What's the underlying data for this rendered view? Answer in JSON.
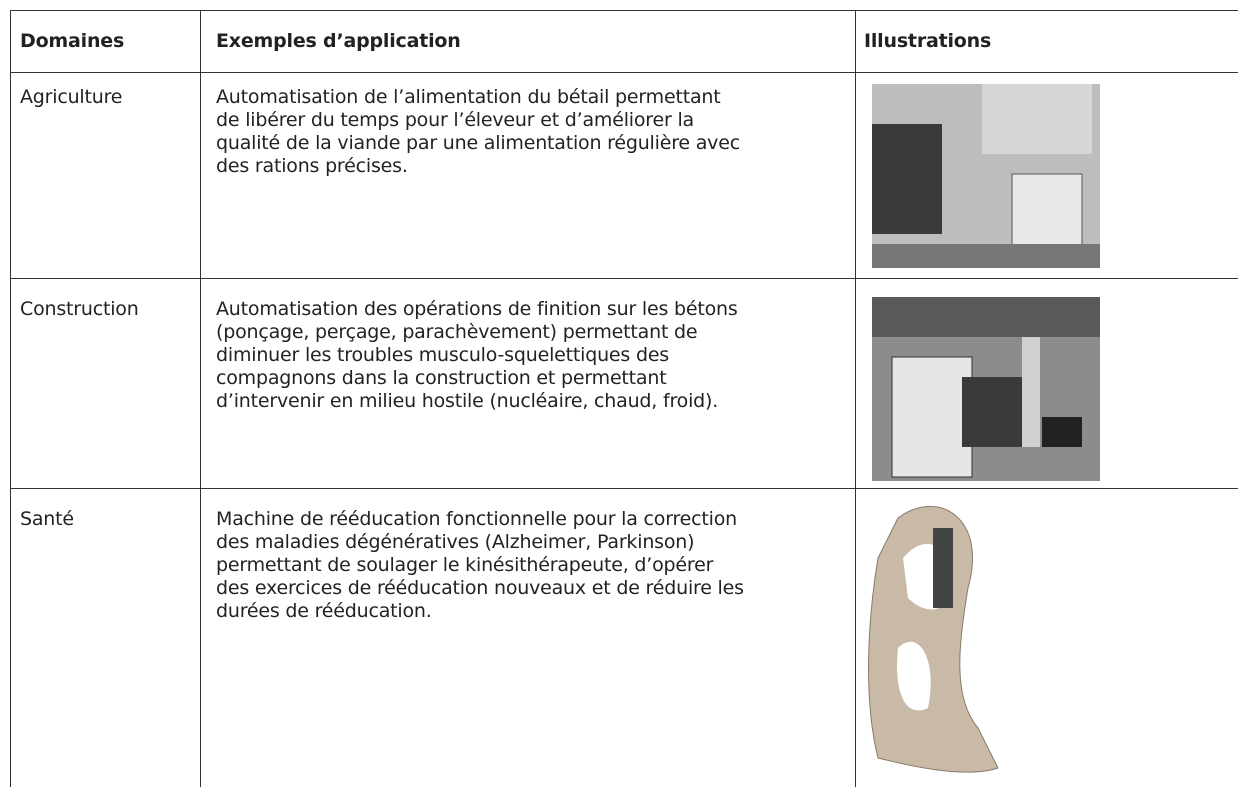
{
  "table": {
    "headers": [
      "Domaines",
      "Exemples d’application",
      "Illustrations"
    ],
    "rows": [
      {
        "domain": "Agriculture",
        "lines": [
          "Automatisation de l’alimentation du bétail permettant",
          "de libérer du temps pour l’éleveur et d’améliorer la",
          "qualité de la viande par une alimentation régulière avec",
          "des rations précises."
        ]
      },
      {
        "domain": "Construction",
        "lines": [
          "Automatisation des opérations de finition sur les bétons",
          "(ponçage, perçage, parachèvement) permettant de",
          "diminuer les troubles musculo-squelettiques des",
          "compagnons dans la construction et permettant",
          "d’intervenir en milieu hostile (nucléaire, chaud, froid)."
        ]
      },
      {
        "domain": "Santé",
        "lines": [
          "Machine de rééducation fonctionnelle pour la correction",
          "des maladies dégénératives (Alzheimer, Parkinson)",
          "permettant de soulager le kinésithérapeute, d’opérer",
          "des exercices de rééducation nouveaux et de réduire les",
          "durées de rééducation."
        ]
      }
    ]
  }
}
